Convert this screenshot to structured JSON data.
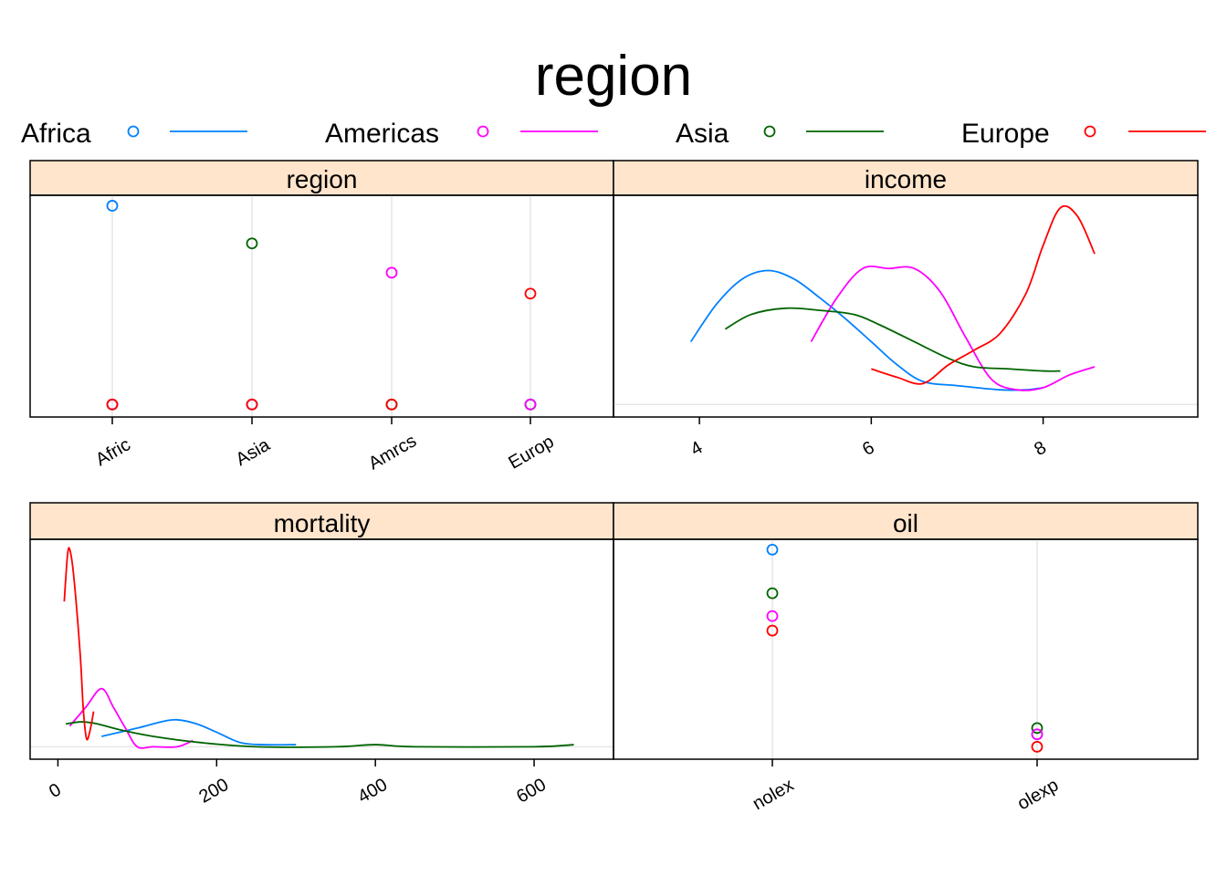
{
  "title": "region",
  "colors": {
    "Africa": "#0080ff",
    "Americas": "#ff00ff",
    "Asia": "#006400",
    "Europe": "#ff0000",
    "strip_fill": "#ffe5cc",
    "refline": "#e6e6e6"
  },
  "legend": [
    {
      "name": "Africa",
      "color": "#0080ff"
    },
    {
      "name": "Americas",
      "color": "#ff00ff"
    },
    {
      "name": "Asia",
      "color": "#006400"
    },
    {
      "name": "Europe",
      "color": "#ff0000"
    }
  ],
  "chart_data": [
    {
      "panel": "region",
      "type": "scatter",
      "title": "region",
      "categories": [
        "Afric",
        "Asia",
        "Amrcs",
        "Europ"
      ],
      "series": [
        {
          "name": "Africa",
          "points": [
            [
              "Afric",
              0.95
            ],
            [
              "Asia",
              0.0
            ],
            [
              "Amrcs",
              0.0
            ],
            [
              "Europ",
              0.0
            ]
          ]
        },
        {
          "name": "Asia",
          "points": [
            [
              "Afric",
              0.0
            ],
            [
              "Asia",
              0.77
            ],
            [
              "Amrcs",
              0.0
            ],
            [
              "Europ",
              0.0
            ]
          ]
        },
        {
          "name": "Americas",
          "points": [
            [
              "Afric",
              0.0
            ],
            [
              "Asia",
              0.0
            ],
            [
              "Amrcs",
              0.63
            ],
            [
              "Europ",
              0.0
            ]
          ]
        },
        {
          "name": "Europe",
          "points": [
            [
              "Afric",
              0.0
            ],
            [
              "Asia",
              0.0
            ],
            [
              "Amrcs",
              0.0
            ],
            [
              "Europ",
              0.53
            ]
          ]
        }
      ],
      "ylim": [
        -0.06,
        1.0
      ]
    },
    {
      "panel": "income",
      "type": "line",
      "title": "income",
      "xticks": [
        "4",
        "6",
        "8"
      ],
      "xlim": [
        3.0,
        9.8
      ],
      "ylim": [
        -0.06,
        1.0
      ],
      "series": [
        {
          "name": "Africa",
          "points": [
            [
              3.9,
              0.3
            ],
            [
              4.2,
              0.48
            ],
            [
              4.5,
              0.6
            ],
            [
              4.8,
              0.64
            ],
            [
              5.1,
              0.6
            ],
            [
              5.4,
              0.51
            ],
            [
              5.7,
              0.41
            ],
            [
              6.0,
              0.3
            ],
            [
              6.3,
              0.19
            ],
            [
              6.6,
              0.11
            ],
            [
              7.0,
              0.09
            ],
            [
              7.5,
              0.07
            ],
            [
              7.8,
              0.07
            ],
            [
              8.0,
              0.08
            ]
          ]
        },
        {
          "name": "Americas",
          "points": [
            [
              5.3,
              0.3
            ],
            [
              5.6,
              0.51
            ],
            [
              5.9,
              0.65
            ],
            [
              6.2,
              0.65
            ],
            [
              6.5,
              0.65
            ],
            [
              6.8,
              0.54
            ],
            [
              7.1,
              0.32
            ],
            [
              7.4,
              0.12
            ],
            [
              7.7,
              0.07
            ],
            [
              8.0,
              0.08
            ],
            [
              8.3,
              0.14
            ],
            [
              8.6,
              0.18
            ]
          ]
        },
        {
          "name": "Asia",
          "points": [
            [
              4.3,
              0.36
            ],
            [
              4.6,
              0.43
            ],
            [
              5.0,
              0.46
            ],
            [
              5.4,
              0.45
            ],
            [
              5.8,
              0.43
            ],
            [
              6.1,
              0.38
            ],
            [
              6.5,
              0.3
            ],
            [
              6.9,
              0.22
            ],
            [
              7.2,
              0.18
            ],
            [
              7.6,
              0.17
            ],
            [
              8.0,
              0.16
            ],
            [
              8.2,
              0.16
            ]
          ]
        },
        {
          "name": "Europe",
          "points": [
            [
              6.0,
              0.17
            ],
            [
              6.3,
              0.13
            ],
            [
              6.6,
              0.1
            ],
            [
              6.9,
              0.19
            ],
            [
              7.2,
              0.26
            ],
            [
              7.5,
              0.34
            ],
            [
              7.8,
              0.53
            ],
            [
              8.0,
              0.76
            ],
            [
              8.2,
              0.94
            ],
            [
              8.4,
              0.9
            ],
            [
              8.6,
              0.72
            ]
          ]
        }
      ]
    },
    {
      "panel": "mortality",
      "type": "line",
      "title": "mortality",
      "xticks": [
        "0",
        "200",
        "400",
        "600"
      ],
      "xlim": [
        -35,
        700
      ],
      "ylim": [
        -0.06,
        1.0
      ],
      "series": [
        {
          "name": "Africa",
          "points": [
            [
              55,
              0.05
            ],
            [
              100,
              0.09
            ],
            [
              130,
              0.12
            ],
            [
              150,
              0.13
            ],
            [
              175,
              0.11
            ],
            [
              200,
              0.07
            ],
            [
              230,
              0.02
            ],
            [
              260,
              0.01
            ],
            [
              300,
              0.01
            ]
          ]
        },
        {
          "name": "Americas",
          "points": [
            [
              15,
              0.1
            ],
            [
              35,
              0.19
            ],
            [
              55,
              0.28
            ],
            [
              70,
              0.19
            ],
            [
              85,
              0.09
            ],
            [
              100,
              0.0
            ],
            [
              120,
              0.0
            ],
            [
              150,
              0.0
            ],
            [
              170,
              0.03
            ]
          ]
        },
        {
          "name": "Asia",
          "points": [
            [
              10,
              0.11
            ],
            [
              30,
              0.12
            ],
            [
              50,
              0.11
            ],
            [
              80,
              0.08
            ],
            [
              120,
              0.05
            ],
            [
              180,
              0.02
            ],
            [
              250,
              0.0
            ],
            [
              350,
              0.0
            ],
            [
              400,
              0.01
            ],
            [
              450,
              0.0
            ],
            [
              600,
              0.0
            ],
            [
              650,
              0.01
            ]
          ]
        },
        {
          "name": "Europe",
          "points": [
            [
              8,
              0.7
            ],
            [
              12,
              0.92
            ],
            [
              15,
              0.95
            ],
            [
              20,
              0.82
            ],
            [
              28,
              0.45
            ],
            [
              32,
              0.18
            ],
            [
              36,
              0.04
            ],
            [
              40,
              0.07
            ],
            [
              45,
              0.17
            ]
          ]
        }
      ]
    },
    {
      "panel": "oil",
      "type": "scatter",
      "title": "oil",
      "categories": [
        "nolex",
        "olexp"
      ],
      "series": [
        {
          "name": "Africa",
          "points": [
            [
              "nolex",
              0.95
            ],
            [
              "olexp",
              0.06
            ]
          ]
        },
        {
          "name": "Asia",
          "points": [
            [
              "nolex",
              0.74
            ],
            [
              "olexp",
              0.09
            ]
          ]
        },
        {
          "name": "Americas",
          "points": [
            [
              "nolex",
              0.63
            ],
            [
              "olexp",
              0.06
            ]
          ]
        },
        {
          "name": "Europe",
          "points": [
            [
              "nolex",
              0.56
            ],
            [
              "olexp",
              0.0
            ]
          ]
        }
      ],
      "ylim": [
        -0.06,
        1.0
      ]
    }
  ]
}
